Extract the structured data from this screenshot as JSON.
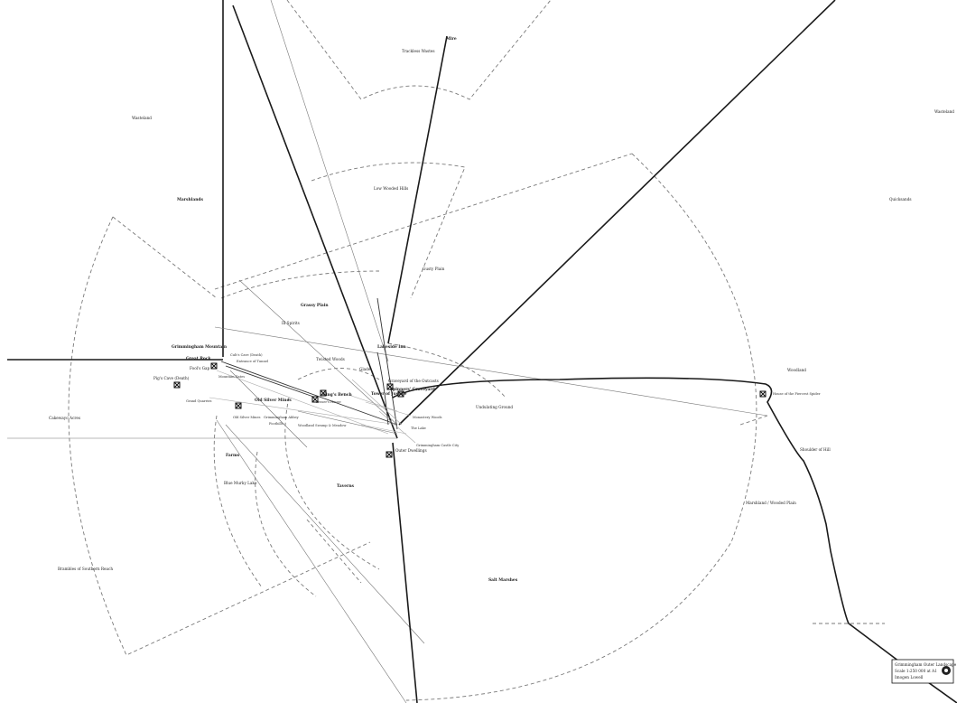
{
  "labels": {
    "mire": "Mire",
    "trackless_wastes": "Trackless Wastes",
    "wasteland_left": "Wasteland",
    "wasteland_right": "Wasteland",
    "marshlands": "Marshlands",
    "quicksands": "Quicksands",
    "low_wooded_hills": "Low Wooded Hills",
    "gusty_plain": "Gusty Plain",
    "grassy_plain": "Grassy Plain",
    "ill_spirits": "Ill Spirits",
    "grimmingham_mountain": "Grimmingham Mountain",
    "great_rock": "Great Rock",
    "cults_cave": "Cult's Cave (Death)",
    "entrance_tunnel": "Entrance of Tunnel",
    "fools_gap": "Fool's Gap",
    "mountain_gates": "Mountain Gates",
    "pigs_cave": "Pig's Cave (Death)",
    "grand_quarries": "Grand Quarries",
    "twisted_woods": "Twisted Woods",
    "glade": "Glade",
    "graveyard_outcasts": "Graveyard of the Outcasts",
    "spinners_graveyard": "Spinners' Graveyard",
    "tower_of_justice": "Tower of Justice",
    "lakeside_inn": "Lakeside Inn",
    "kings_bench": "King's Bench",
    "lessers_house": "Lesser's House",
    "undulating_ground": "Undulating Ground",
    "old_silver_mines": "Old Silver Mines",
    "grimmingham_abbey": "Grimmingham Abbey",
    "foothills": "Foothills",
    "woodland_swamp": "Woodland Swamp & Meadow",
    "the_lake": "The Lake",
    "grimmingham_castle": "Grimmingham Castle City",
    "outer_dwellings": "Outer Dwellings",
    "monastery_woods": "Monastery Woods",
    "cakewayo_acres": "Cakewayo Acres",
    "farms": "Farms",
    "blue_murky_lake": "Blue Murky Lake",
    "taverns": "Taverns",
    "woodland": "Woodland",
    "house_of_fiercest_spider": "House of the Fiercest Spider",
    "shoulder_of_hill": "Shoulder of Hill",
    "marshland_wooded": "Marshland / Wooded Plain",
    "brambles": "Brambles of Southern Reach",
    "salt_marshes": "Salt Marshes"
  },
  "legend": {
    "title": "Grimmingham Outer Landscape",
    "scale": "Scale 1:250 000 at A1",
    "author": "Imogen Lowell"
  },
  "icons": {
    "site": "ruin-site-marker",
    "compass": "compass-icon"
  },
  "colors": {
    "background": "#ffffff",
    "ink": "#1a1a1a",
    "dashed": "#7a7a7a"
  }
}
